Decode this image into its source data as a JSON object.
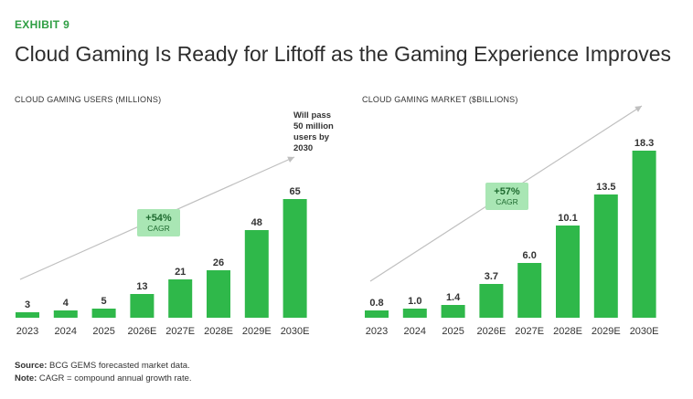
{
  "exhibit": "EXHIBIT 9",
  "title": "Cloud Gaming Is Ready for Liftoff as the Gaming Experience Improves",
  "colors": {
    "bar": "#2fb84a",
    "accent": "#2e9e43",
    "badge_bg": "#a9e6b4",
    "arrow": "#bfbfbf"
  },
  "chart_data": [
    {
      "type": "bar",
      "title": "CLOUD GAMING USERS (MILLIONS)",
      "categories": [
        "2023",
        "2024",
        "2025",
        "2026E",
        "2027E",
        "2028E",
        "2029E",
        "2030E"
      ],
      "values": [
        3,
        4,
        5,
        13,
        21,
        26,
        48,
        65
      ],
      "value_labels": [
        "3",
        "4",
        "5",
        "13",
        "21",
        "26",
        "48",
        "65"
      ],
      "ylim": [
        0,
        65
      ],
      "grid": false,
      "cagr": {
        "value": "+54%",
        "label": "CAGR"
      },
      "annotation": [
        "Will pass",
        "50 million",
        "users by",
        "2030"
      ]
    },
    {
      "type": "bar",
      "title": "CLOUD GAMING MARKET ($BILLIONS)",
      "categories": [
        "2023",
        "2024",
        "2025",
        "2026E",
        "2027E",
        "2028E",
        "2029E",
        "2030E"
      ],
      "values": [
        0.8,
        1.0,
        1.4,
        3.7,
        6.0,
        10.1,
        13.5,
        18.3
      ],
      "value_labels": [
        "0.8",
        "1.0",
        "1.4",
        "3.7",
        "6.0",
        "10.1",
        "13.5",
        "18.3"
      ],
      "ylim": [
        0,
        18.3
      ],
      "grid": false,
      "cagr": {
        "value": "+57%",
        "label": "CAGR"
      }
    }
  ],
  "footer": {
    "source_label": "Source:",
    "source_text": " BCG GEMS forecasted market data.",
    "note_label": "Note:",
    "note_text": " CAGR = compound annual growth rate."
  }
}
